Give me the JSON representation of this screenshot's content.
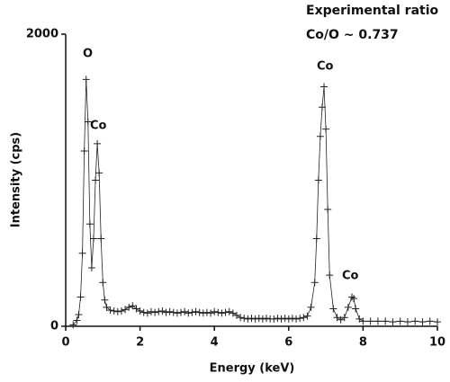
{
  "chart_data": {
    "type": "line",
    "x_label": "Energy (keV)",
    "y_label": "Intensity (cps)",
    "xlim": [
      0,
      10
    ],
    "xticks": [
      0,
      2,
      4,
      6,
      8,
      10
    ],
    "ylim": [
      0,
      2000
    ],
    "yticks": [
      0,
      2000
    ],
    "annotations": [
      "O",
      "Co",
      "Co",
      "Co",
      "Experimental ratio",
      "Co/O ~ 0.737"
    ],
    "series": [
      {
        "color": "#222222",
        "x": [
          0.2,
          0.3,
          0.35,
          0.4,
          0.45,
          0.5,
          0.55,
          0.6,
          0.65,
          0.7,
          0.75,
          0.8,
          0.85,
          0.9,
          0.95,
          1.0,
          1.05,
          1.1,
          1.2,
          1.3,
          1.4,
          1.5,
          1.6,
          1.7,
          1.8,
          1.9,
          2.0,
          2.1,
          2.2,
          2.3,
          2.4,
          2.5,
          2.6,
          2.7,
          2.8,
          2.9,
          3.0,
          3.1,
          3.2,
          3.3,
          3.4,
          3.5,
          3.6,
          3.7,
          3.8,
          3.9,
          4.0,
          4.1,
          4.2,
          4.3,
          4.4,
          4.5,
          4.6,
          4.7,
          4.8,
          4.9,
          5.0,
          5.1,
          5.2,
          5.3,
          5.4,
          5.5,
          5.6,
          5.7,
          5.8,
          5.9,
          6.0,
          6.1,
          6.2,
          6.3,
          6.4,
          6.5,
          6.6,
          6.7,
          6.75,
          6.8,
          6.85,
          6.9,
          6.95,
          7.0,
          7.05,
          7.1,
          7.2,
          7.3,
          7.4,
          7.5,
          7.6,
          7.7,
          7.75,
          7.8,
          7.9,
          8.0,
          8.2,
          8.4,
          8.6,
          8.8,
          9.0,
          9.2,
          9.4,
          9.6,
          9.8,
          10.0
        ],
        "values": [
          10,
          40,
          80,
          200,
          500,
          1200,
          1690,
          1400,
          700,
          400,
          600,
          1000,
          1250,
          1050,
          600,
          300,
          180,
          130,
          110,
          105,
          100,
          105,
          115,
          130,
          140,
          120,
          105,
          95,
          90,
          100,
          95,
          100,
          105,
          95,
          100,
          95,
          90,
          95,
          100,
          90,
          95,
          100,
          95,
          90,
          95,
          90,
          100,
          95,
          90,
          95,
          100,
          90,
          75,
          60,
          55,
          50,
          55,
          50,
          55,
          50,
          55,
          50,
          50,
          55,
          50,
          55,
          50,
          55,
          50,
          55,
          60,
          70,
          130,
          300,
          600,
          1000,
          1300,
          1500,
          1640,
          1350,
          800,
          350,
          120,
          60,
          45,
          60,
          130,
          200,
          190,
          120,
          50,
          35,
          35,
          35,
          35,
          30,
          35,
          30,
          35,
          30,
          35,
          30
        ]
      }
    ]
  }
}
